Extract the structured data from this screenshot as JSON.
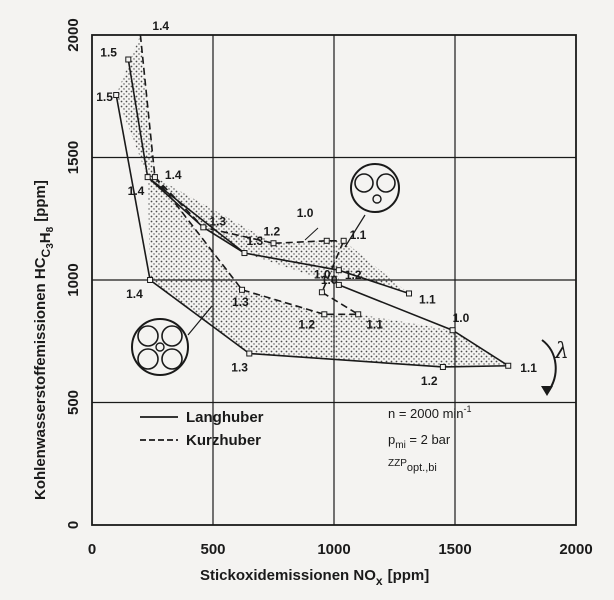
{
  "chart_data": {
    "type": "line",
    "xlabel": "Stickoxidemissionen NO",
    "xlabel_sub": "x",
    "xlabel_unit": "[ppm]",
    "ylabel_parts": [
      "Kohlenwasserstoffemissionen HC",
      "C",
      "3",
      "H",
      "8",
      "[ppm]"
    ],
    "xlim": [
      0,
      2000
    ],
    "ylim": [
      0,
      2000
    ],
    "xticks": [
      0,
      500,
      1000,
      1500,
      2000
    ],
    "yticks": [
      0,
      500,
      1000,
      1500,
      2000
    ],
    "grid": true,
    "series": [
      {
        "name": "Langhuber",
        "style": "solid",
        "points": [
          {
            "x": 100,
            "y": 1755,
            "label": "1.5"
          },
          {
            "x": 150,
            "y": 1900,
            "label": "1.5"
          },
          {
            "x": 230,
            "y": 1420,
            "label": "1.4"
          },
          {
            "x": 240,
            "y": 1000,
            "label": "1.4"
          },
          {
            "x": 460,
            "y": 1215,
            "label": "1.3"
          },
          {
            "x": 630,
            "y": 1110,
            "label": "1.3"
          },
          {
            "x": 650,
            "y": 700,
            "label": "1.3"
          },
          {
            "x": 1020,
            "y": 980,
            "label": "1.2"
          },
          {
            "x": 1450,
            "y": 645,
            "label": "1.2"
          },
          {
            "x": 1020,
            "y": 1040,
            "label": "1.0"
          },
          {
            "x": 1310,
            "y": 945,
            "label": "1.1"
          },
          {
            "x": 1490,
            "y": 795,
            "label": "1.0"
          },
          {
            "x": 1720,
            "y": 650,
            "label": "1.1"
          }
        ]
      },
      {
        "name": "Kurzhuber",
        "style": "dashed",
        "points": [
          {
            "x": 200,
            "y": 2000,
            "label": "1.4"
          },
          {
            "x": 260,
            "y": 1420,
            "label": "1.4"
          },
          {
            "x": 750,
            "y": 1150,
            "label": "1.2"
          },
          {
            "x": 970,
            "y": 1160,
            "label": "1.0"
          },
          {
            "x": 1040,
            "y": 1160,
            "label": "1.1"
          },
          {
            "x": 620,
            "y": 960,
            "label": "1.3"
          },
          {
            "x": 950,
            "y": 950,
            "label": "1.0"
          },
          {
            "x": 960,
            "y": 860,
            "label": "1.2"
          },
          {
            "x": 1100,
            "y": 860,
            "label": "1.1"
          }
        ]
      }
    ],
    "annotations": {
      "lambda": "λ",
      "conditions": {
        "n": "n = 2000 min",
        "n_exp": "-1",
        "p": "p",
        "p_sub": "mi",
        "p_rest": " = 2 bar",
        "zzp": "ZZP",
        "zzp_sub": "opt.,bi"
      }
    },
    "legend": [
      {
        "label": "Langhuber",
        "style": "solid"
      },
      {
        "label": "Kurzhuber",
        "style": "dashed"
      }
    ],
    "colors": {
      "line": "#1a1a1a",
      "fill_dots": "#4a4a4a",
      "background": "#f4f3f1"
    }
  }
}
